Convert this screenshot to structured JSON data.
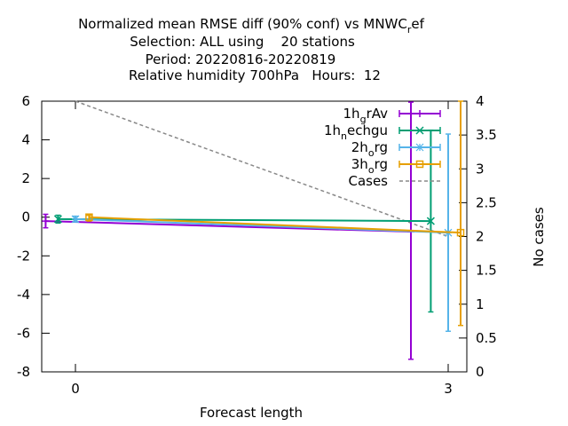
{
  "chart_data": {
    "type": "line",
    "title_lines": [
      "Normalized mean RMSE diff (90% conf) vs MNWC",
      "Selection: ALL using    20 stations",
      "Period: 20220816-20220819",
      "Relative humidity 700hPa   Hours:  12"
    ],
    "title_suffix": {
      "base": "",
      "sub": "r",
      "rest": "ef"
    },
    "xlabel": "Forecast length",
    "ylabel": "",
    "y2label": "No cases",
    "xlim": [
      -0.25,
      3.1
    ],
    "ylim": [
      -8,
      6
    ],
    "y2lim": [
      0,
      4
    ],
    "xticks": [
      "0",
      "3"
    ],
    "yticks": [
      "6",
      "4",
      "2",
      "0",
      "-2",
      "-4",
      "-6",
      "-8"
    ],
    "y2ticks": [
      "4",
      "3.5",
      "3",
      "2.5",
      "2",
      "1.5",
      "1",
      "0.5",
      "0"
    ],
    "legend_position": "top-right",
    "series": [
      {
        "base": "1h",
        "sub": "g",
        "rest": "rAv",
        "color": "#9400d3",
        "marker": "plus",
        "x": [
          -0.24,
          2.7
        ],
        "y": [
          -0.2,
          -0.75
        ],
        "err_low": [
          -0.55,
          -7.35
        ],
        "err_high": [
          0.15,
          5.95
        ]
      },
      {
        "base": "1h",
        "sub": "n",
        "rest": "echgu",
        "color": "#009e73",
        "marker": "x",
        "x": [
          -0.14,
          2.86
        ],
        "y": [
          -0.1,
          -0.2
        ],
        "err_low": [
          -0.3,
          -4.9
        ],
        "err_high": [
          0.1,
          4.5
        ]
      },
      {
        "base": "2h",
        "sub": "o",
        "rest": "rg",
        "color": "#56b4e9",
        "marker": "star",
        "x": [
          0.0,
          3.0
        ],
        "y": [
          -0.1,
          -0.8
        ],
        "err_low": [
          -0.25,
          -5.9
        ],
        "err_high": [
          0.05,
          4.3
        ]
      },
      {
        "base": "3h",
        "sub": "o",
        "rest": "rg",
        "color": "#e69f00",
        "marker": "square",
        "x": [
          0.11,
          3.1
        ],
        "y": [
          0.0,
          -0.8
        ],
        "err_low": [
          -0.2,
          -5.6
        ],
        "err_high": [
          0.1,
          6.0
        ]
      }
    ],
    "cases": {
      "label": "Cases",
      "color": "#888888",
      "x": [
        0.0,
        3.0
      ],
      "y": [
        4,
        2
      ]
    }
  }
}
